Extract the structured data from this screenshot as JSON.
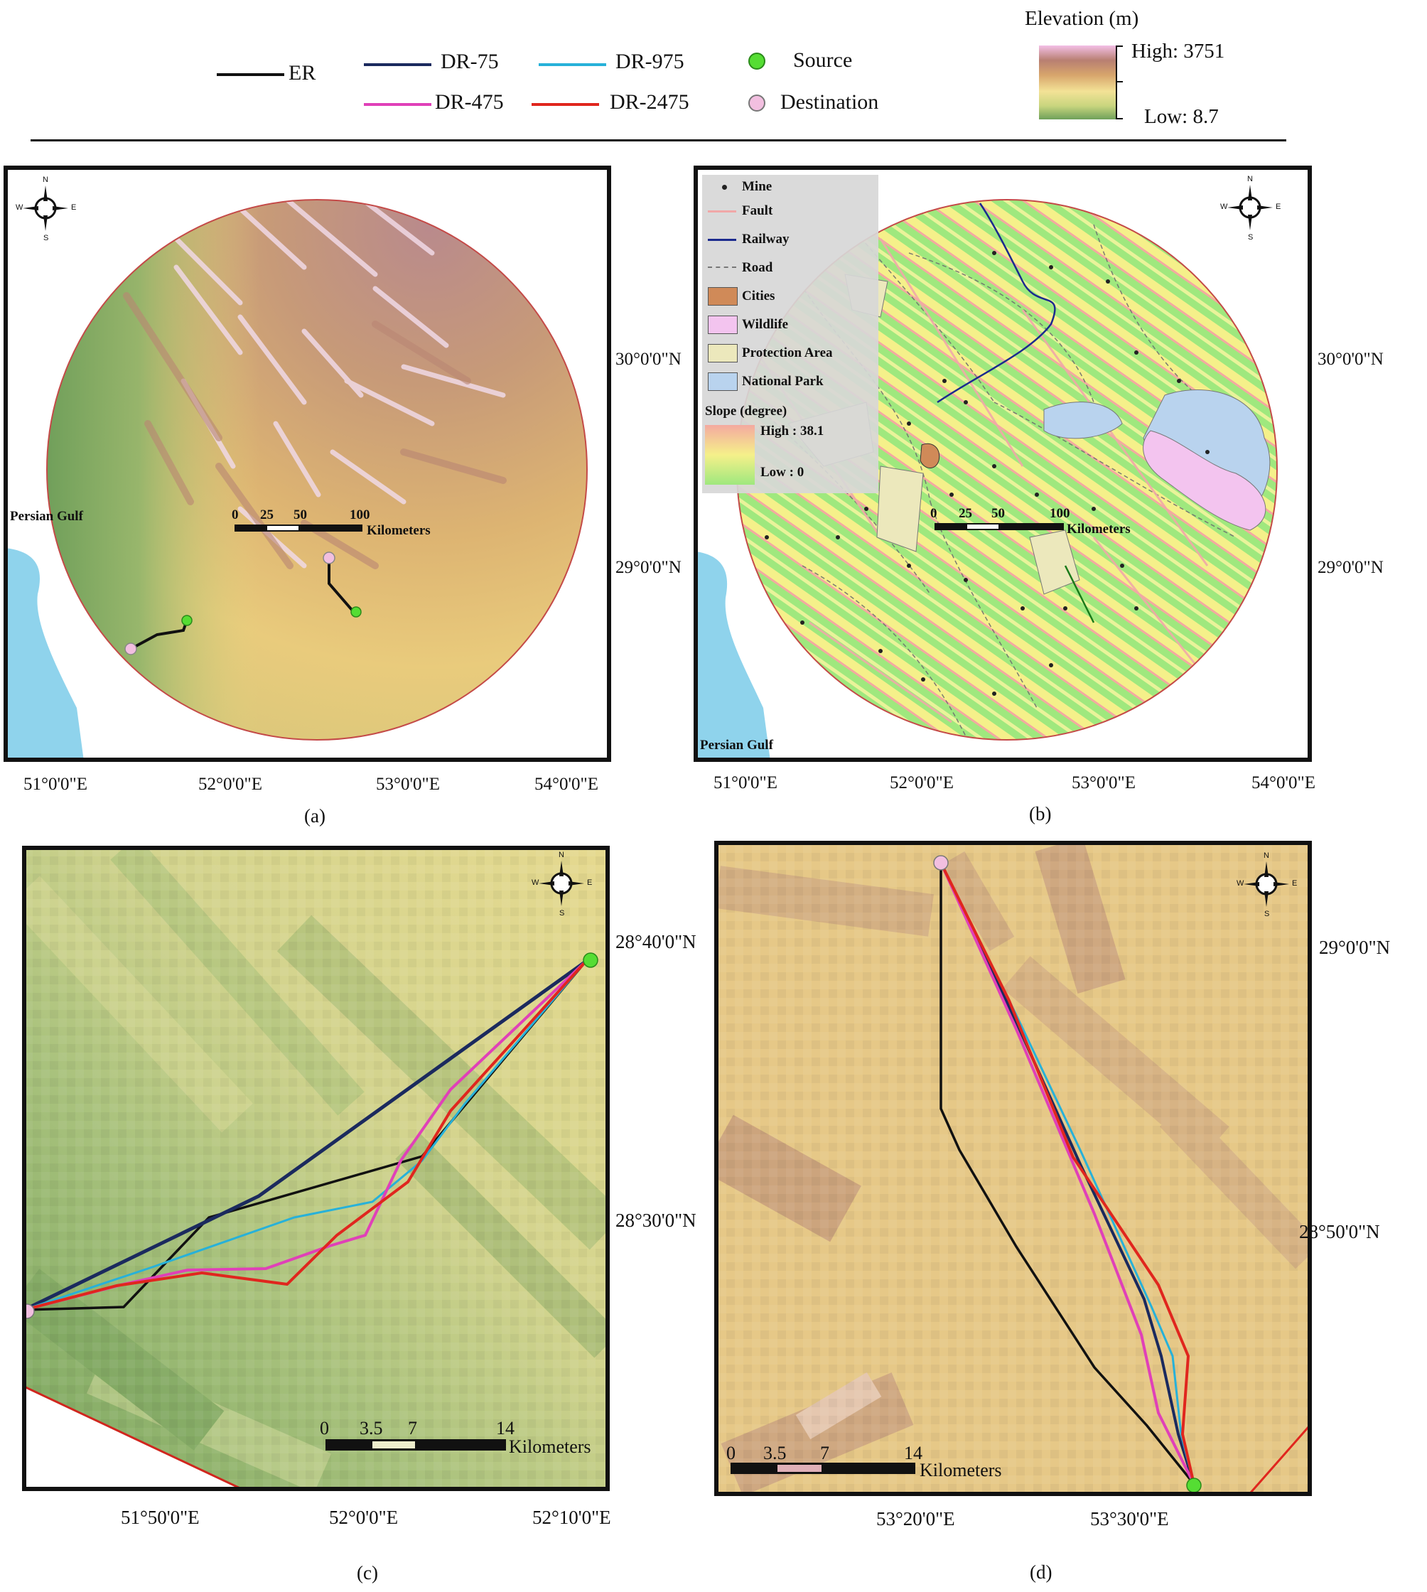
{
  "legend": {
    "routes": [
      {
        "label": "ER",
        "color": "#111111"
      },
      {
        "label": "DR-75",
        "color": "#1b2a5e"
      },
      {
        "label": "DR-975",
        "color": "#27b1d9"
      },
      {
        "label": "DR-475",
        "color": "#e040b8"
      },
      {
        "label": "DR-2475",
        "color": "#e0261e"
      }
    ],
    "points": [
      {
        "label": "Source",
        "color": "#55dd33"
      },
      {
        "label": "Destination",
        "color": "#f2bfe0"
      }
    ],
    "elevation": {
      "title": "Elevation (m)",
      "high": "High: 3751",
      "low": "Low: 8.7"
    }
  },
  "panel_a": {
    "caption": "(a)",
    "sea_label": "Persian Gulf",
    "x_ticks": [
      "51°0'0\"E",
      "52°0'0\"E",
      "53°0'0\"E",
      "54°0'0\"E"
    ],
    "y_ticks": [
      "30°0'0\"N",
      "29°0'0\"N"
    ],
    "scale": {
      "labels": [
        "0",
        "25",
        "50",
        "100"
      ],
      "unit": "Kilometers"
    }
  },
  "panel_b": {
    "caption": "(b)",
    "sea_label": "Persian Gulf",
    "x_ticks": [
      "51°0'0\"E",
      "52°0'0\"E",
      "53°0'0\"E",
      "54°0'0\"E"
    ],
    "y_ticks": [
      "30°0'0\"N",
      "29°0'0\"N"
    ],
    "scale": {
      "labels": [
        "0",
        "25",
        "50",
        "100"
      ],
      "unit": "Kilometers"
    },
    "legend": {
      "items": [
        {
          "label": "Mine",
          "icon": "dot-icon"
        },
        {
          "label": "Fault",
          "icon": "line-icon",
          "color": "#f0a8a8"
        },
        {
          "label": "Railway",
          "icon": "line-icon",
          "color": "#1b2a8e"
        },
        {
          "label": "Road",
          "icon": "dashed-line-icon",
          "color": "#777777"
        },
        {
          "label": "Cities",
          "icon": "patch-icon",
          "color": "#d08a58"
        },
        {
          "label": "Wildlife",
          "icon": "patch-icon",
          "color": "#f3c4ef"
        },
        {
          "label": "Protection Area",
          "icon": "patch-icon",
          "color": "#ece8bc"
        },
        {
          "label": "National Park",
          "icon": "patch-icon",
          "color": "#b9d3ee"
        }
      ],
      "slope_title": "Slope (degree)",
      "slope_high": "High : 38.1",
      "slope_low": "Low : 0"
    }
  },
  "panel_c": {
    "caption": "(c)",
    "x_ticks": [
      "51°50'0\"E",
      "52°0'0\"E",
      "52°10'0\"E"
    ],
    "y_ticks": [
      "28°40'0\"N",
      "28°30'0\"N"
    ],
    "scale": {
      "labels": [
        "0",
        "3.5",
        "7",
        "14"
      ],
      "unit": "Kilometers"
    }
  },
  "panel_d": {
    "caption": "(d)",
    "x_ticks": [
      "53°20'0\"E",
      "53°30'0\"E"
    ],
    "y_ticks": [
      "29°0'0\"N",
      "28°50'0\"N"
    ],
    "scale": {
      "labels": [
        "0",
        "3.5",
        "7",
        "14"
      ],
      "unit": "Kilometers"
    }
  },
  "compass": {
    "n": "N",
    "s": "S",
    "e": "E",
    "w": "W"
  }
}
